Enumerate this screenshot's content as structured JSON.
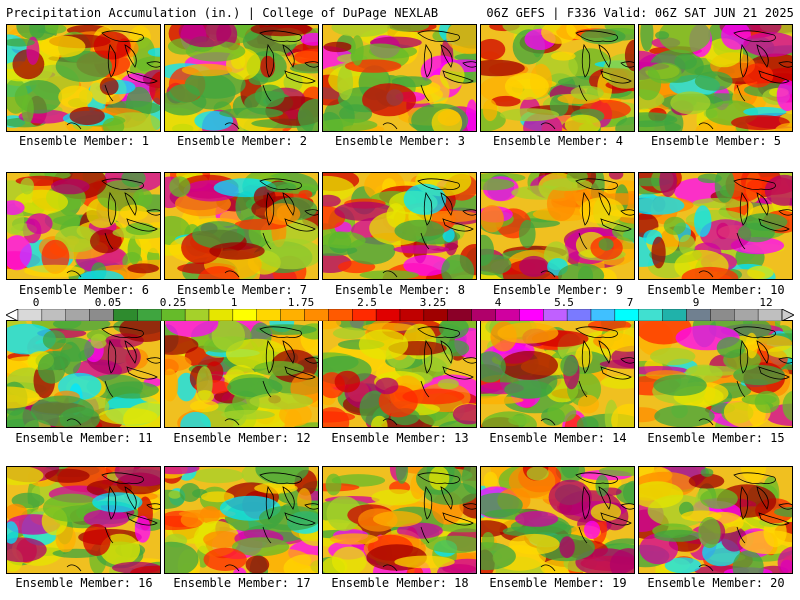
{
  "header": {
    "left_title": "Precipitation Accumulation (in.) | College of DuPage NEXLAB",
    "right_title": "06Z GEFS | F336 Valid: 06Z SAT JUN 21 2025"
  },
  "panels": [
    {
      "label": "Ensemble Member: 1"
    },
    {
      "label": "Ensemble Member: 2"
    },
    {
      "label": "Ensemble Member: 3"
    },
    {
      "label": "Ensemble Member: 4"
    },
    {
      "label": "Ensemble Member: 5"
    },
    {
      "label": "Ensemble Member: 6"
    },
    {
      "label": "Ensemble Member: 7"
    },
    {
      "label": "Ensemble Member: 8"
    },
    {
      "label": "Ensemble Member: 9"
    },
    {
      "label": "Ensemble Member: 10"
    },
    {
      "label": "Ensemble Member: 11"
    },
    {
      "label": "Ensemble Member: 12"
    },
    {
      "label": "Ensemble Member: 13"
    },
    {
      "label": "Ensemble Member: 14"
    },
    {
      "label": "Ensemble Member: 15"
    },
    {
      "label": "Ensemble Member: 16"
    },
    {
      "label": "Ensemble Member: 17"
    },
    {
      "label": "Ensemble Member: 18"
    },
    {
      "label": "Ensemble Member: 19"
    },
    {
      "label": "Ensemble Member: 20"
    }
  ],
  "colorbar": {
    "tick_labels": [
      "0",
      "0.05",
      "0.25",
      "1",
      "1.75",
      "2.5",
      "3.25",
      "4",
      "5.5",
      "7",
      "9",
      "12"
    ],
    "colors": [
      "#d9d9d9",
      "#bfbfbf",
      "#a6a6a6",
      "#8c8c8c",
      "#2e8b2e",
      "#3fa53f",
      "#66bb2a",
      "#a5d12a",
      "#e6e600",
      "#ffff00",
      "#ffd700",
      "#ffb000",
      "#ff8c00",
      "#ff5a00",
      "#ff2a00",
      "#e00000",
      "#c00000",
      "#a00000",
      "#8b0028",
      "#b0006a",
      "#d000a0",
      "#ff00ff",
      "#c060ff",
      "#7a7aff",
      "#40c0ff",
      "#00ffff",
      "#40e0d0",
      "#20b2aa",
      "#708090",
      "#8c8c8c",
      "#a6a6a6",
      "#bfbfbf"
    ]
  }
}
